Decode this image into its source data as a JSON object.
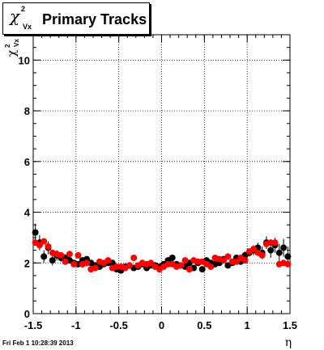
{
  "title": {
    "symbol": "χ",
    "superscript": "2",
    "subscript": "Vx",
    "text": "Primary Tracks"
  },
  "yaxis_label": {
    "symbol": "χ",
    "superscript": "2",
    "subscript": "Vx"
  },
  "footer": "Fri Feb  1 10:28:39 2013",
  "chart_data": {
    "type": "scatter",
    "xlabel": "η",
    "ylabel": "χ²Vx",
    "xlim": [
      -1.5,
      1.5
    ],
    "ylim": [
      0,
      11
    ],
    "x_ticks": [
      -1.5,
      -1,
      -0.5,
      0,
      0.5,
      1,
      1.5
    ],
    "x_tick_labels": [
      "-1.5",
      "-1",
      "-0.5",
      "0",
      "0.5",
      "1",
      "1.5"
    ],
    "y_ticks": [
      0,
      2,
      4,
      6,
      8,
      10
    ],
    "y_tick_labels": [
      "0",
      "2",
      "4",
      "6",
      "8",
      "10"
    ],
    "grid": true,
    "series": [
      {
        "color": "#000000",
        "x": [
          -1.475,
          -1.425,
          -1.375,
          -1.325,
          -1.275,
          -1.225,
          -1.175,
          -1.125,
          -1.075,
          -1.025,
          -0.975,
          -0.925,
          -0.875,
          -0.825,
          -0.775,
          -0.725,
          -0.675,
          -0.625,
          -0.575,
          -0.525,
          -0.475,
          -0.425,
          -0.375,
          -0.325,
          -0.275,
          -0.225,
          -0.175,
          -0.125,
          -0.075,
          -0.025,
          0.025,
          0.075,
          0.125,
          0.175,
          0.225,
          0.275,
          0.325,
          0.375,
          0.425,
          0.475,
          0.525,
          0.575,
          0.625,
          0.675,
          0.725,
          0.775,
          0.825,
          0.875,
          0.925,
          0.975,
          1.025,
          1.075,
          1.125,
          1.175,
          1.225,
          1.275,
          1.325,
          1.375,
          1.425,
          1.475
        ],
        "y": [
          3.2,
          2.8,
          2.25,
          2.6,
          2.1,
          2.3,
          2.2,
          2.2,
          2.1,
          2.0,
          1.95,
          2.1,
          2.15,
          2.0,
          1.9,
          1.85,
          1.95,
          2.0,
          2.0,
          1.75,
          1.7,
          1.85,
          1.9,
          1.8,
          1.85,
          1.95,
          1.8,
          1.9,
          1.9,
          1.85,
          1.95,
          2.1,
          2.2,
          1.95,
          1.9,
          1.85,
          2.0,
          1.8,
          2.0,
          1.75,
          2.1,
          2.0,
          1.95,
          2.0,
          2.15,
          1.9,
          2.0,
          2.2,
          2.05,
          2.3,
          2.4,
          2.5,
          2.6,
          2.4,
          2.8,
          2.5,
          2.7,
          2.4,
          2.6,
          2.25
        ],
        "yerr": [
          0.35,
          0.3,
          0.25,
          0.25,
          0.2,
          0.2,
          0.15,
          0.15,
          0.12,
          0.12,
          0.1,
          0.1,
          0.1,
          0.1,
          0.1,
          0.1,
          0.1,
          0.1,
          0.1,
          0.1,
          0.1,
          0.1,
          0.1,
          0.1,
          0.1,
          0.1,
          0.1,
          0.1,
          0.1,
          0.1,
          0.1,
          0.1,
          0.1,
          0.1,
          0.1,
          0.1,
          0.1,
          0.1,
          0.1,
          0.1,
          0.1,
          0.1,
          0.1,
          0.1,
          0.1,
          0.1,
          0.1,
          0.12,
          0.12,
          0.15,
          0.15,
          0.2,
          0.2,
          0.25,
          0.25,
          0.3,
          0.3,
          0.35,
          0.35,
          0.4
        ]
      },
      {
        "color": "#ff0000",
        "x": [
          -1.475,
          -1.425,
          -1.375,
          -1.325,
          -1.275,
          -1.225,
          -1.175,
          -1.125,
          -1.075,
          -1.025,
          -0.975,
          -0.925,
          -0.875,
          -0.825,
          -0.775,
          -0.725,
          -0.675,
          -0.625,
          -0.575,
          -0.525,
          -0.475,
          -0.425,
          -0.375,
          -0.325,
          -0.275,
          -0.225,
          -0.175,
          -0.125,
          -0.075,
          -0.025,
          0.025,
          0.075,
          0.125,
          0.175,
          0.225,
          0.275,
          0.325,
          0.375,
          0.425,
          0.475,
          0.525,
          0.575,
          0.625,
          0.675,
          0.725,
          0.775,
          0.825,
          0.875,
          0.925,
          0.975,
          1.025,
          1.075,
          1.125,
          1.175,
          1.225,
          1.275,
          1.325,
          1.375,
          1.425,
          1.475
        ],
        "y": [
          2.8,
          2.7,
          2.85,
          2.65,
          2.4,
          2.35,
          2.3,
          2.05,
          2.35,
          1.95,
          2.3,
          1.95,
          2.0,
          1.75,
          1.8,
          2.05,
          2.0,
          2.1,
          1.8,
          1.85,
          1.85,
          1.8,
          1.9,
          2.2,
          1.9,
          2.0,
          1.95,
          2.0,
          1.85,
          1.75,
          1.85,
          1.95,
          1.95,
          1.85,
          1.9,
          2.1,
          1.75,
          2.1,
          2.05,
          2.05,
          1.95,
          1.85,
          2.2,
          2.15,
          2.1,
          2.25,
          2.05,
          2.05,
          2.2,
          2.1,
          2.45,
          2.55,
          2.4,
          2.3,
          2.75,
          2.8,
          2.8,
          1.95,
          2.0,
          1.95
        ]
      }
    ]
  }
}
